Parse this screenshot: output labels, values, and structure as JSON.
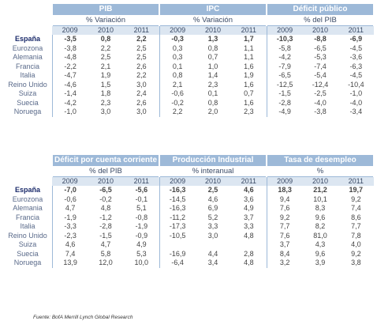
{
  "top": {
    "groups": [
      {
        "title": "PIB",
        "unit": "% Variación"
      },
      {
        "title": "IPC",
        "unit": "% Variación"
      },
      {
        "title": "Déficit público",
        "unit": "% del PIB"
      }
    ],
    "years": [
      "2009",
      "2010",
      "2011"
    ],
    "rows": [
      {
        "country": "España",
        "values": [
          "-3,5",
          "0,8",
          "2,2",
          "-0,3",
          "1,3",
          "1,7",
          "-10,3",
          "-8,8",
          "-6,9"
        ],
        "bold": true
      },
      {
        "country": "Eurozona",
        "values": [
          "-3,8",
          "2,2",
          "2,5",
          "0,3",
          "0,8",
          "1,1",
          "-5,8",
          "-6,5",
          "-4,5"
        ]
      },
      {
        "country": "Alemania",
        "values": [
          "-4,8",
          "2,5",
          "2,5",
          "0,3",
          "0,7",
          "1,1",
          "-4,2",
          "-5,3",
          "-3,6"
        ]
      },
      {
        "country": "Francia",
        "values": [
          "-2,2",
          "2,1",
          "2,6",
          "0,1",
          "1,0",
          "1,6",
          "-7,9",
          "-7,4",
          "-6,3"
        ]
      },
      {
        "country": "Italia",
        "values": [
          "-4,7",
          "1,9",
          "2,2",
          "0,8",
          "1,4",
          "1,9",
          "-6,5",
          "-5,4",
          "-4,5"
        ]
      },
      {
        "country": "Reino Unido",
        "values": [
          "-4,6",
          "1,5",
          "3,0",
          "2,1",
          "2,3",
          "1,6",
          "-12,5",
          "-12,4",
          "-10,4"
        ]
      },
      {
        "country": "Suiza",
        "values": [
          "-1,4",
          "1,8",
          "2,4",
          "-0,6",
          "0,1",
          "0,7",
          "-1,5",
          "-2,5",
          "-1,0"
        ]
      },
      {
        "country": "Suecia",
        "values": [
          "-4,2",
          "2,3",
          "2,6",
          "-0,2",
          "0,8",
          "1,6",
          "-2,8",
          "-4,0",
          "-4,0"
        ]
      },
      {
        "country": "Noruega",
        "values": [
          "-1,0",
          "3,0",
          "3,0",
          "2,2",
          "2,0",
          "2,3",
          "-4,9",
          "-3,8",
          "-3,4"
        ]
      }
    ]
  },
  "bottom": {
    "groups": [
      {
        "title": "Déficit por cuenta corriente",
        "unit": "% del PIB"
      },
      {
        "title": "Producción Industrial",
        "unit": "% interanual"
      },
      {
        "title": "Tasa de desempleo",
        "unit": "%"
      }
    ],
    "years": [
      "2009",
      "2010",
      "2011"
    ],
    "rows": [
      {
        "country": "España",
        "values": [
          "-7,0",
          "-6,5",
          "-5,6",
          "-16,3",
          "2,5",
          "4,6",
          "18,3",
          "21,2",
          "19,7"
        ],
        "bold": true
      },
      {
        "country": "Eurozona",
        "values": [
          "-0,6",
          "-0,2",
          "-0,1",
          "-14,5",
          "4,6",
          "3,6",
          "9,4",
          "10,1",
          "9,2"
        ]
      },
      {
        "country": "Alemania",
        "values": [
          "4,7",
          "4,8",
          "5,1",
          "-16,3",
          "6,9",
          "4,9",
          "7,6",
          "8,3",
          "7,4"
        ]
      },
      {
        "country": "Francia",
        "values": [
          "-1,9",
          "-1,2",
          "-0,8",
          "-11,2",
          "5,2",
          "3,7",
          "9,2",
          "9,6",
          "8,6"
        ]
      },
      {
        "country": "Italia",
        "values": [
          "-3,3",
          "-2,8",
          "-1,9",
          "-17,3",
          "3,3",
          "3,3",
          "7,7",
          "8,2",
          "7,7"
        ]
      },
      {
        "country": "Reino Unido",
        "values": [
          "-2,3",
          "-1,5",
          "-0,9",
          "-10,5",
          "3,0",
          "4,8",
          "7,6",
          "81,0",
          "7,8"
        ]
      },
      {
        "country": "Suiza",
        "values": [
          "4,6",
          "4,7",
          "4,9",
          "",
          "",
          "",
          "3,7",
          "4,3",
          "4,0"
        ]
      },
      {
        "country": "Suecia",
        "values": [
          "7,4",
          "5,8",
          "5,3",
          "-16,9",
          "4,4",
          "2,8",
          "8,4",
          "9,6",
          "9,2"
        ]
      },
      {
        "country": "Noruega",
        "values": [
          "13,9",
          "12,0",
          "10,0",
          "-6,4",
          "3,4",
          "4,8",
          "3,2",
          "3,9",
          "3,8"
        ]
      }
    ]
  },
  "source": "Fuente: BofA Merrill Lynch Global Research"
}
